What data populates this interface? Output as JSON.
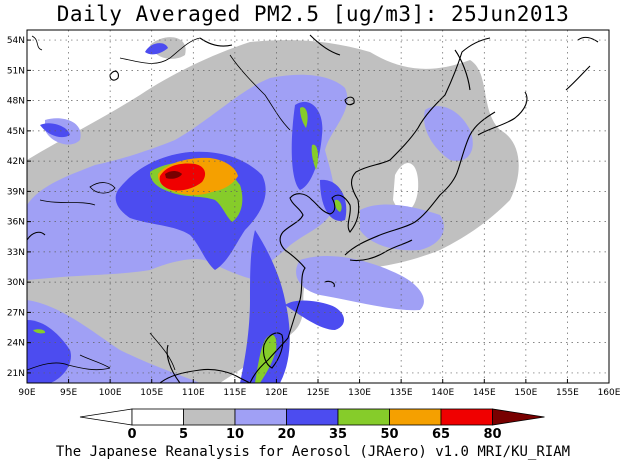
{
  "title": "Daily Averaged PM2.5 [ug/m3]: 25Jun2013",
  "footer": "The Japanese Reanalysis for Aerosol (JRAero) v1.0 MRI/KU_RIAM",
  "map": {
    "lon_range": [
      90,
      160
    ],
    "lat_range": [
      20,
      55
    ],
    "lon_ticks": [
      "90E",
      "95E",
      "100E",
      "105E",
      "110E",
      "115E",
      "120E",
      "125E",
      "130E",
      "135E",
      "140E",
      "145E",
      "150E",
      "155E",
      "160E"
    ],
    "lat_ticks": [
      "54N",
      "51N",
      "48N",
      "45N",
      "42N",
      "39N",
      "36N",
      "33N",
      "30N",
      "27N",
      "24N",
      "21N"
    ],
    "grid": "dotted"
  },
  "colorbar": {
    "levels": [
      "0",
      "5",
      "10",
      "20",
      "35",
      "50",
      "65",
      "80"
    ],
    "colors": [
      "#ffffff",
      "#c0c0c0",
      "#a0a0f5",
      "#4c4cf0",
      "#86cc2a",
      "#f5a000",
      "#f00000",
      "#780000"
    ]
  }
}
